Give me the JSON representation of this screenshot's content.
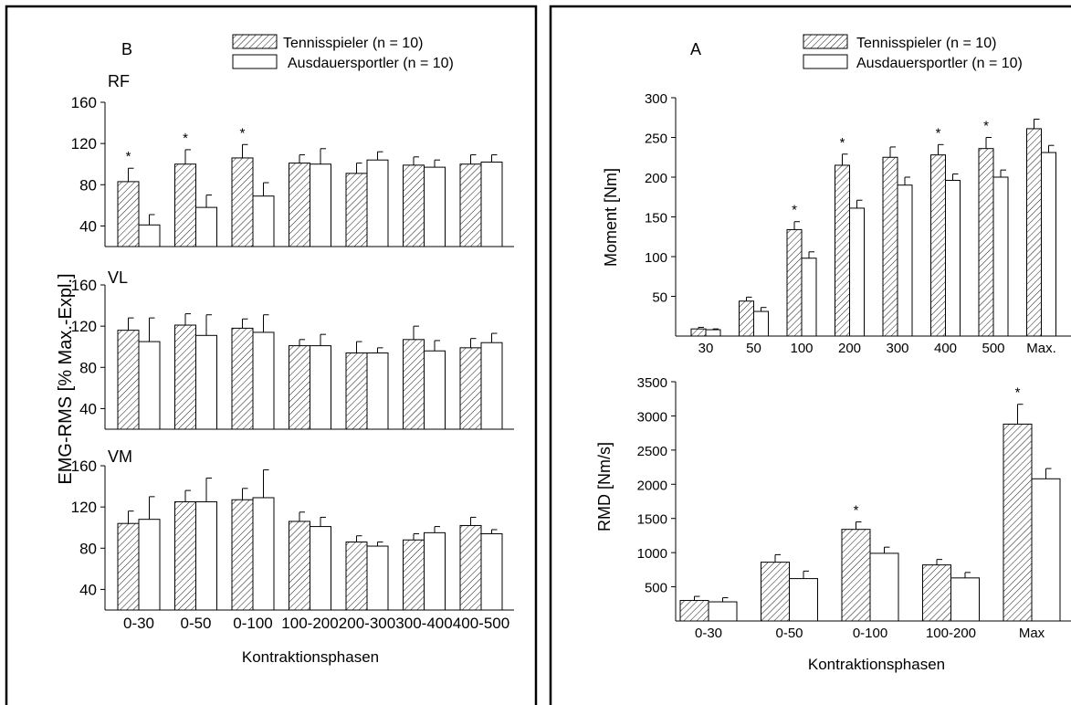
{
  "legend": {
    "tennis": "Tennisspieler (n = 10)",
    "endurance": "Ausdauersportler (n = 10)"
  },
  "chart_data": [
    {
      "panel": "B",
      "type": "bar",
      "ylabel": "EMG-RMS [% Max.-Expl.]",
      "xlabel": "Kontraktionsphasen",
      "categories": [
        "0-30",
        "0-50",
        "0-100",
        "100-200",
        "200-300",
        "300-400",
        "400-500"
      ],
      "subplots": [
        {
          "label": "RF",
          "ylim": [
            20,
            160
          ],
          "yticks": [
            40,
            80,
            120,
            160
          ],
          "series": [
            {
              "name": "Tennisspieler (n = 10)",
              "values": [
                83,
                100,
                106,
                101,
                91,
                99,
                100
              ],
              "errors": [
                13,
                14,
                13,
                8,
                10,
                8,
                9
              ]
            },
            {
              "name": "Ausdauersportler (n = 10)",
              "values": [
                41,
                58,
                69,
                100,
                104,
                97,
                102
              ],
              "errors": [
                10,
                12,
                13,
                15,
                8,
                7,
                7
              ]
            }
          ],
          "significant": [
            true,
            true,
            true,
            false,
            false,
            false,
            false
          ]
        },
        {
          "label": "VL",
          "ylim": [
            20,
            160
          ],
          "yticks": [
            40,
            80,
            120,
            160
          ],
          "series": [
            {
              "name": "Tennisspieler (n = 10)",
              "values": [
                116,
                121,
                118,
                101,
                94,
                107,
                99
              ],
              "errors": [
                12,
                11,
                9,
                6,
                11,
                13,
                9
              ]
            },
            {
              "name": "Ausdauersportler (n = 10)",
              "values": [
                105,
                111,
                114,
                101,
                94,
                96,
                104
              ],
              "errors": [
                23,
                20,
                17,
                11,
                5,
                10,
                9
              ]
            }
          ],
          "significant": [
            false,
            false,
            false,
            false,
            false,
            false,
            false
          ]
        },
        {
          "label": "VM",
          "ylim": [
            20,
            160
          ],
          "yticks": [
            40,
            80,
            120,
            160
          ],
          "series": [
            {
              "name": "Tennisspieler (n = 10)",
              "values": [
                104,
                125,
                127,
                106,
                86,
                88,
                102
              ],
              "errors": [
                12,
                11,
                11,
                9,
                6,
                6,
                8
              ]
            },
            {
              "name": "Ausdauersportler (n = 10)",
              "values": [
                108,
                125,
                129,
                101,
                82,
                95,
                94
              ],
              "errors": [
                22,
                23,
                27,
                9,
                4,
                6,
                4
              ]
            }
          ],
          "significant": [
            false,
            false,
            false,
            false,
            false,
            false,
            false
          ]
        }
      ]
    },
    {
      "panel": "A",
      "type": "bar",
      "ylabel": "Moment [Nm]",
      "categories": [
        "30",
        "50",
        "100",
        "200",
        "300",
        "400",
        "500",
        "Max."
      ],
      "ylim": [
        0,
        300
      ],
      "yticks": [
        50,
        100,
        150,
        200,
        250,
        300
      ],
      "series": [
        {
          "name": "Tennisspieler (n = 10)",
          "values": [
            9,
            44,
            134,
            215,
            225,
            228,
            236,
            261
          ],
          "errors": [
            2,
            5,
            10,
            14,
            13,
            13,
            14,
            12
          ]
        },
        {
          "name": "Ausdauersportler (n = 10)",
          "values": [
            8,
            31,
            98,
            161,
            190,
            196,
            200,
            231
          ],
          "errors": [
            1,
            5,
            8,
            10,
            10,
            8,
            9,
            9
          ]
        }
      ],
      "significant": [
        false,
        false,
        true,
        true,
        false,
        true,
        true,
        false
      ]
    },
    {
      "panel": "A",
      "type": "bar",
      "ylabel": "RMD [Nm/s]",
      "xlabel": "Kontraktionsphasen",
      "categories": [
        "0-30",
        "0-50",
        "0-100",
        "100-200",
        "Max"
      ],
      "ylim": [
        0,
        3500
      ],
      "yticks": [
        500,
        1000,
        1500,
        2000,
        2500,
        3000,
        3500
      ],
      "series": [
        {
          "name": "Tennisspieler (n = 10)",
          "values": [
            300,
            860,
            1340,
            820,
            2880
          ],
          "errors": [
            60,
            110,
            110,
            80,
            290
          ]
        },
        {
          "name": "Ausdauersportler (n = 10)",
          "values": [
            280,
            620,
            990,
            630,
            2080
          ],
          "errors": [
            60,
            110,
            90,
            80,
            150
          ]
        }
      ],
      "significant": [
        false,
        false,
        true,
        false,
        true
      ]
    }
  ]
}
